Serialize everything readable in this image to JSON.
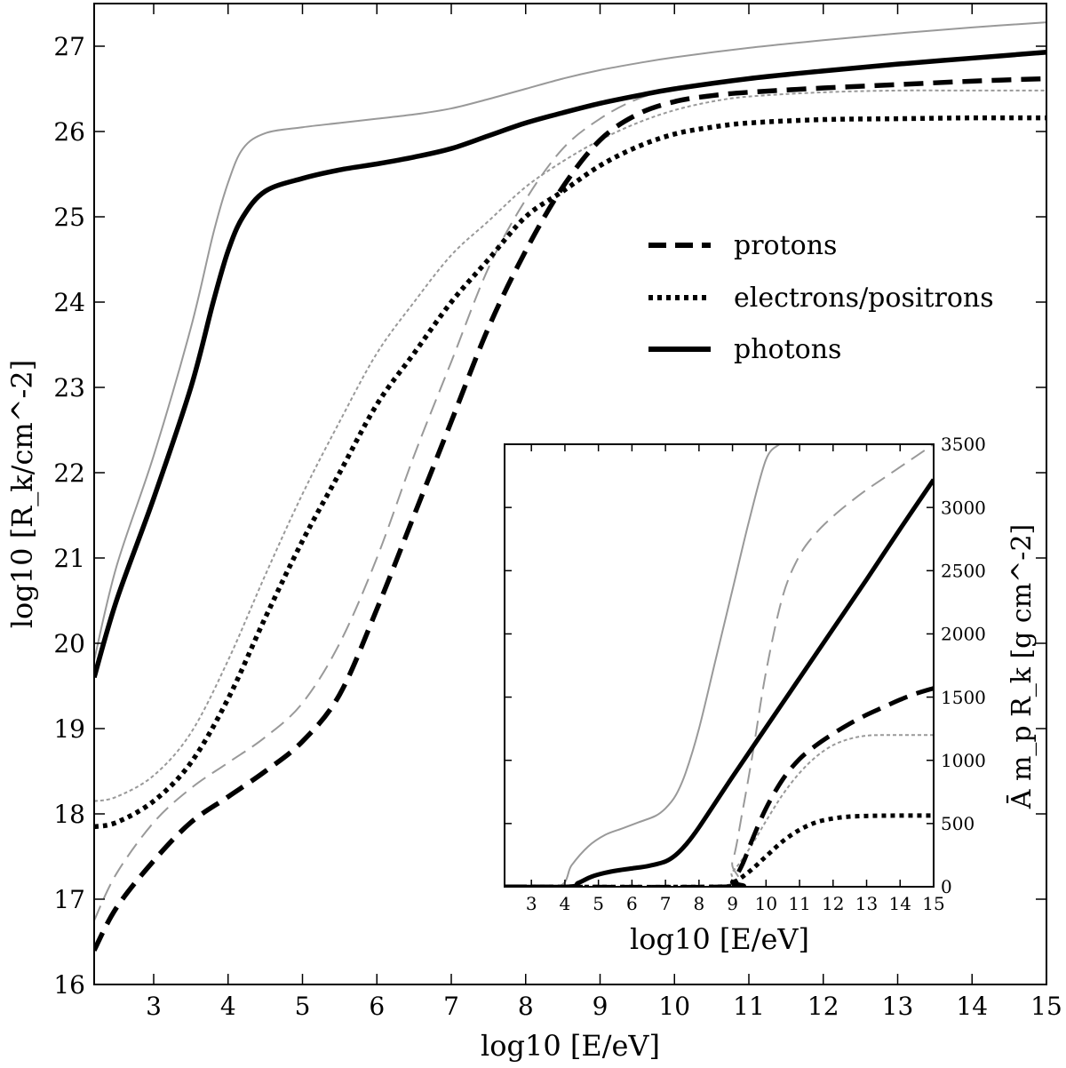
{
  "chart_data": [
    {
      "type": "line",
      "panel": "main",
      "xlabel": "log10 [E/eV]",
      "ylabel": "log10 [R_k/cm^-2]",
      "xlim": [
        2.2,
        15
      ],
      "ylim": [
        16,
        27.5
      ],
      "xticks": [
        "3",
        "4",
        "5",
        "6",
        "7",
        "8",
        "9",
        "10",
        "11",
        "12",
        "13",
        "14",
        "15"
      ],
      "yticks": [
        "16",
        "17",
        "18",
        "19",
        "20",
        "21",
        "22",
        "23",
        "24",
        "25",
        "26",
        "27"
      ],
      "legend": {
        "position": "upper-right",
        "entries": [
          {
            "label": "protons",
            "style": "dashed"
          },
          {
            "label": "electrons/positrons",
            "style": "dotted"
          },
          {
            "label": "photons",
            "style": "solid"
          }
        ]
      },
      "series": [
        {
          "name": "protons",
          "style": "dashed",
          "emphasis": "black",
          "x": [
            2.2,
            2.5,
            3.0,
            3.5,
            4.0,
            4.5,
            5.0,
            5.5,
            6.0,
            6.5,
            7.0,
            7.5,
            8.0,
            8.5,
            9.0,
            9.5,
            10.0,
            10.5,
            11.0,
            12.0,
            13.0,
            14.0,
            15.0
          ],
          "y": [
            16.4,
            16.9,
            17.45,
            17.9,
            18.2,
            18.5,
            18.85,
            19.4,
            20.4,
            21.5,
            22.6,
            23.7,
            24.6,
            25.35,
            25.9,
            26.2,
            26.35,
            26.42,
            26.46,
            26.51,
            26.55,
            26.59,
            26.62
          ]
        },
        {
          "name": "electrons/positrons",
          "style": "dotted",
          "emphasis": "black",
          "x": [
            2.2,
            2.5,
            3.0,
            3.5,
            4.0,
            4.5,
            5.0,
            5.5,
            6.0,
            6.5,
            7.0,
            7.5,
            8.0,
            8.5,
            9.0,
            9.5,
            10.0,
            10.5,
            11.0,
            12.0,
            13.0,
            14.0,
            15.0
          ],
          "y": [
            17.85,
            17.9,
            18.15,
            18.6,
            19.35,
            20.3,
            21.2,
            22.0,
            22.8,
            23.4,
            24.0,
            24.5,
            25.0,
            25.3,
            25.6,
            25.82,
            25.97,
            26.05,
            26.1,
            26.14,
            26.15,
            26.16,
            26.16
          ]
        },
        {
          "name": "photons",
          "style": "solid",
          "emphasis": "black",
          "x": [
            2.2,
            2.5,
            3.0,
            3.5,
            3.8,
            4.0,
            4.2,
            4.5,
            5.0,
            5.5,
            6.0,
            6.5,
            7.0,
            7.5,
            8.0,
            8.5,
            9.0,
            9.5,
            10.0,
            11.0,
            12.0,
            13.0,
            14.0,
            15.0
          ],
          "y": [
            19.6,
            20.5,
            21.7,
            23.0,
            24.0,
            24.6,
            25.0,
            25.3,
            25.45,
            25.55,
            25.62,
            25.7,
            25.8,
            25.95,
            26.1,
            26.22,
            26.33,
            26.42,
            26.5,
            26.62,
            26.71,
            26.79,
            26.86,
            26.93
          ]
        },
        {
          "name": "protons (gray)",
          "style": "dashed",
          "emphasis": "gray",
          "x": [
            2.2,
            2.5,
            3.0,
            3.5,
            4.0,
            4.5,
            5.0,
            5.5,
            6.0,
            6.5,
            7.0,
            7.5,
            8.0,
            8.5,
            9.0,
            9.5,
            10.0,
            10.5,
            11.0,
            12.0,
            13.0,
            14.0,
            15.0
          ],
          "y": [
            16.75,
            17.3,
            17.9,
            18.3,
            18.6,
            18.9,
            19.3,
            20.0,
            21.0,
            22.2,
            23.3,
            24.4,
            25.2,
            25.8,
            26.15,
            26.38,
            26.5,
            26.57,
            26.62,
            26.7,
            26.78,
            26.85,
            26.91
          ]
        },
        {
          "name": "electrons/positrons (gray)",
          "style": "dotted",
          "emphasis": "gray",
          "x": [
            2.2,
            2.5,
            3.0,
            3.5,
            4.0,
            4.5,
            5.0,
            5.5,
            6.0,
            6.5,
            7.0,
            7.5,
            8.0,
            8.5,
            9.0,
            9.5,
            10.0,
            10.5,
            11.0,
            12.0,
            13.0,
            14.0,
            15.0
          ],
          "y": [
            18.15,
            18.2,
            18.45,
            18.95,
            19.8,
            20.8,
            21.75,
            22.6,
            23.4,
            24.0,
            24.55,
            24.95,
            25.35,
            25.65,
            25.9,
            26.1,
            26.25,
            26.35,
            26.41,
            26.46,
            26.48,
            26.48,
            26.48
          ]
        },
        {
          "name": "photons (gray)",
          "style": "solid",
          "emphasis": "gray",
          "x": [
            2.2,
            2.5,
            3.0,
            3.5,
            3.8,
            4.0,
            4.2,
            4.5,
            5.0,
            5.5,
            6.0,
            6.5,
            7.0,
            7.5,
            8.0,
            8.5,
            9.0,
            9.5,
            10.0,
            11.0,
            12.0,
            13.0,
            14.0,
            15.0
          ],
          "y": [
            19.8,
            20.9,
            22.2,
            23.7,
            24.8,
            25.4,
            25.8,
            25.98,
            26.05,
            26.1,
            26.15,
            26.2,
            26.27,
            26.38,
            26.5,
            26.62,
            26.72,
            26.8,
            26.87,
            26.98,
            27.07,
            27.15,
            27.22,
            27.28
          ]
        }
      ]
    },
    {
      "type": "line",
      "panel": "inset",
      "xlabel": "log10 [E/eV]",
      "ylabel": "Ā m_p R_k [g cm^-2]",
      "xlim": [
        2.2,
        15
      ],
      "ylim": [
        0,
        3500
      ],
      "xticks": [
        "3",
        "4",
        "5",
        "6",
        "7",
        "8",
        "9",
        "10",
        "11",
        "12",
        "13",
        "14",
        "15"
      ],
      "yticks": [
        "0",
        "500",
        "1000",
        "1500",
        "2000",
        "2500",
        "3000",
        "3500"
      ],
      "series": [
        {
          "name": "protons",
          "style": "dashed",
          "emphasis": "black",
          "x": [
            2.2,
            8.8,
            9.0,
            9.3,
            9.6,
            10.0,
            10.5,
            11.0,
            11.5,
            12.0,
            12.5,
            13.0,
            13.5,
            14.0,
            14.5,
            15.0
          ],
          "y": [
            0,
            0,
            40,
            180,
            380,
            620,
            850,
            1010,
            1120,
            1210,
            1290,
            1360,
            1420,
            1480,
            1530,
            1570
          ]
        },
        {
          "name": "electrons/positrons",
          "style": "dotted",
          "emphasis": "black",
          "x": [
            2.2,
            8.5,
            9.0,
            9.5,
            10.0,
            10.5,
            11.0,
            11.5,
            12.0,
            12.5,
            13.0,
            13.5,
            14.0,
            14.5,
            15.0
          ],
          "y": [
            0,
            0,
            30,
            120,
            240,
            360,
            450,
            510,
            540,
            555,
            560,
            562,
            563,
            563,
            563
          ]
        },
        {
          "name": "photons",
          "style": "solid",
          "emphasis": "black",
          "x": [
            2.2,
            4.1,
            4.4,
            4.8,
            5.2,
            5.6,
            6.0,
            6.5,
            7.0,
            7.3,
            7.6,
            8.0,
            9.0,
            10.0,
            11.0,
            12.0,
            13.0,
            14.0,
            15.0
          ],
          "y": [
            0,
            0,
            30,
            80,
            110,
            130,
            145,
            165,
            200,
            250,
            330,
            470,
            870,
            1260,
            1650,
            2040,
            2430,
            2830,
            3220
          ]
        },
        {
          "name": "protons (gray)",
          "style": "dashed",
          "emphasis": "gray",
          "x": [
            2.2,
            8.6,
            9.0,
            9.3,
            9.6,
            10.0,
            10.5,
            11.0,
            11.5,
            12.0,
            12.5,
            13.0,
            13.5,
            14.0,
            14.5,
            15.0
          ],
          "y": [
            0,
            0,
            200,
            600,
            1050,
            1700,
            2300,
            2620,
            2800,
            2930,
            3040,
            3140,
            3230,
            3320,
            3410,
            3500
          ]
        },
        {
          "name": "electrons/positrons (gray)",
          "style": "dotted",
          "emphasis": "gray",
          "x": [
            2.2,
            8.4,
            9.0,
            9.5,
            10.0,
            10.5,
            11.0,
            11.5,
            12.0,
            12.5,
            13.0,
            13.5,
            14.0,
            14.5,
            15.0
          ],
          "y": [
            0,
            0,
            120,
            300,
            520,
            730,
            900,
            1030,
            1120,
            1170,
            1195,
            1200,
            1200,
            1200,
            1200
          ]
        },
        {
          "name": "photons (gray)",
          "style": "solid",
          "emphasis": "gray",
          "x": [
            2.2,
            3.8,
            4.2,
            4.7,
            5.2,
            5.7,
            6.2,
            6.7,
            7.0,
            7.3,
            7.6,
            8.0,
            8.5,
            9.0,
            9.5,
            10.0,
            10.4
          ],
          "y": [
            0,
            0,
            170,
            320,
            410,
            460,
            510,
            560,
            620,
            720,
            900,
            1250,
            1800,
            2350,
            2900,
            3380,
            3500
          ]
        }
      ]
    }
  ]
}
